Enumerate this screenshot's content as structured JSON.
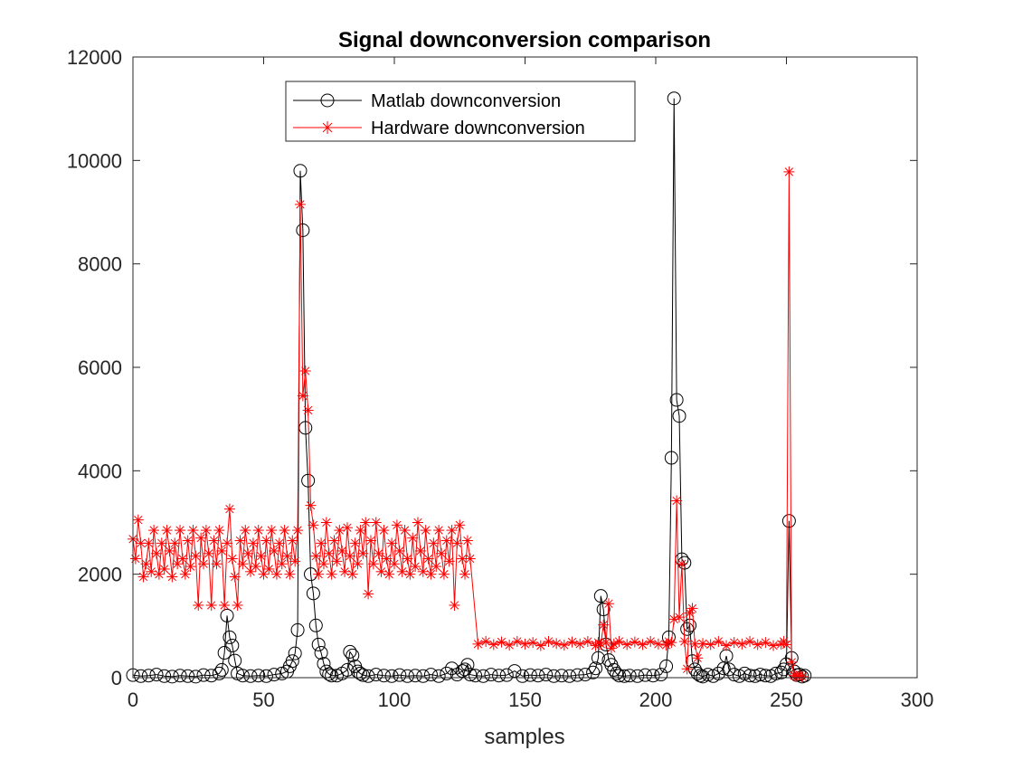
{
  "chart_data": {
    "type": "line",
    "title": "Signal downconversion comparison",
    "xlabel": "samples",
    "ylabel": "",
    "xlim": [
      0,
      300
    ],
    "ylim": [
      0,
      12000
    ],
    "xticks": [
      0,
      50,
      100,
      150,
      200,
      250,
      300
    ],
    "yticks": [
      0,
      2000,
      4000,
      6000,
      8000,
      10000,
      12000
    ],
    "grid": false,
    "legend_position": "top-center",
    "series": [
      {
        "name": "Matlab downconversion",
        "color": "#000000",
        "marker": "circle",
        "x": [
          0,
          3,
          6,
          9,
          12,
          15,
          18,
          21,
          24,
          27,
          30,
          33,
          34,
          35,
          36,
          37,
          38,
          39,
          40,
          42,
          45,
          48,
          51,
          54,
          57,
          59,
          60,
          61,
          62,
          63,
          64,
          65,
          66,
          67,
          68,
          69,
          70,
          71,
          72,
          73,
          74,
          75,
          76,
          78,
          80,
          82,
          83,
          84,
          85,
          86,
          87,
          88,
          90,
          93,
          96,
          99,
          102,
          105,
          108,
          111,
          114,
          117,
          120,
          122,
          124,
          126,
          127,
          128,
          129,
          131,
          134,
          137,
          140,
          143,
          146,
          149,
          152,
          155,
          158,
          161,
          164,
          167,
          170,
          173,
          176,
          177,
          178,
          179,
          180,
          181,
          182,
          183,
          184,
          185,
          186,
          188,
          190,
          193,
          196,
          199,
          202,
          204,
          205,
          206,
          207,
          208,
          209,
          210,
          211,
          212,
          213,
          214,
          215,
          216,
          217,
          218,
          220,
          222,
          224,
          226,
          227,
          228,
          230,
          232,
          234,
          236,
          238,
          240,
          242,
          244,
          246,
          248,
          249,
          250,
          251,
          252,
          253,
          254,
          255,
          256,
          257
        ],
        "y": [
          50,
          30,
          40,
          60,
          30,
          20,
          40,
          30,
          20,
          50,
          40,
          80,
          150,
          480,
          1200,
          780,
          620,
          330,
          80,
          40,
          30,
          40,
          30,
          60,
          80,
          120,
          220,
          320,
          470,
          920,
          9800,
          8650,
          4830,
          3810,
          2000,
          1630,
          1010,
          640,
          480,
          270,
          120,
          70,
          40,
          40,
          80,
          150,
          500,
          430,
          220,
          120,
          80,
          50,
          30,
          60,
          40,
          30,
          50,
          30,
          40,
          30,
          60,
          30,
          80,
          180,
          60,
          130,
          160,
          250,
          60,
          40,
          30,
          60,
          40,
          50,
          130,
          30,
          50,
          40,
          60,
          30,
          40,
          30,
          50,
          60,
          100,
          180,
          380,
          1580,
          1320,
          640,
          340,
          250,
          150,
          80,
          40,
          30,
          40,
          30,
          50,
          40,
          60,
          220,
          780,
          4250,
          11200,
          5370,
          5060,
          2290,
          2220,
          940,
          1010,
          320,
          160,
          80,
          40,
          20,
          60,
          30,
          80,
          180,
          420,
          160,
          60,
          30,
          80,
          40,
          30,
          60,
          40,
          30,
          80,
          100,
          160,
          260,
          3030,
          380,
          120,
          50,
          60,
          20,
          40
        ]
      },
      {
        "name": "Hardware downconversion",
        "color": "#ff0000",
        "marker": "star",
        "x": [
          0,
          1,
          2,
          3,
          4,
          5,
          6,
          7,
          8,
          9,
          10,
          11,
          12,
          13,
          14,
          15,
          16,
          17,
          18,
          19,
          20,
          21,
          22,
          23,
          24,
          25,
          26,
          27,
          28,
          29,
          30,
          31,
          32,
          33,
          34,
          35,
          36,
          37,
          38,
          39,
          40,
          41,
          42,
          43,
          44,
          45,
          46,
          47,
          48,
          49,
          50,
          51,
          52,
          53,
          54,
          55,
          56,
          57,
          58,
          59,
          60,
          61,
          62,
          63,
          64,
          65,
          66,
          67,
          68,
          69,
          70,
          71,
          72,
          73,
          74,
          75,
          76,
          77,
          78,
          79,
          80,
          81,
          82,
          83,
          84,
          85,
          86,
          87,
          88,
          89,
          90,
          91,
          92,
          93,
          94,
          95,
          96,
          97,
          98,
          99,
          100,
          101,
          102,
          103,
          104,
          105,
          106,
          107,
          108,
          109,
          110,
          111,
          112,
          113,
          114,
          115,
          116,
          117,
          118,
          119,
          120,
          121,
          122,
          123,
          124,
          125,
          126,
          127,
          128,
          129,
          132,
          135,
          138,
          141,
          144,
          147,
          150,
          153,
          156,
          159,
          162,
          165,
          168,
          171,
          174,
          177,
          178,
          179,
          180,
          181,
          182,
          183,
          184,
          186,
          189,
          192,
          195,
          198,
          201,
          204,
          205,
          206,
          207,
          208,
          209,
          210,
          211,
          212,
          213,
          214,
          215,
          216,
          218,
          221,
          224,
          227,
          230,
          233,
          236,
          239,
          242,
          245,
          248,
          249,
          250,
          251,
          252,
          253,
          254,
          255,
          256
        ],
        "y": [
          2680,
          2300,
          3050,
          2600,
          1950,
          2200,
          2600,
          2050,
          2850,
          2400,
          2000,
          2600,
          2100,
          2850,
          2450,
          1950,
          2600,
          2200,
          2850,
          2300,
          2000,
          2650,
          2150,
          2850,
          2350,
          1400,
          2700,
          2200,
          2850,
          2400,
          1400,
          2650,
          2200,
          2850,
          2450,
          1400,
          2600,
          3260,
          2300,
          1950,
          1400,
          2650,
          2200,
          2850,
          2400,
          2050,
          2600,
          2150,
          2850,
          2350,
          2000,
          2650,
          2100,
          2850,
          2450,
          2000,
          2600,
          2200,
          2850,
          2350,
          2000,
          2650,
          2250,
          2850,
          9150,
          5450,
          5930,
          5170,
          3330,
          2950,
          2350,
          2000,
          2600,
          2200,
          3000,
          2400,
          2000,
          2650,
          2250,
          2850,
          2450,
          2050,
          2900,
          2350,
          2000,
          2600,
          2200,
          2850,
          2400,
          3000,
          1620,
          2650,
          2200,
          3000,
          2400,
          2050,
          2850,
          2300,
          2000,
          2600,
          2200,
          2950,
          2450,
          2050,
          2850,
          2300,
          2000,
          2700,
          2150,
          3000,
          2450,
          2050,
          2850,
          2300,
          2000,
          2600,
          2150,
          2850,
          2400,
          2000,
          2650,
          2250,
          2850,
          1400,
          2600,
          2950,
          2300,
          2000,
          2650,
          2300,
          650,
          700,
          640,
          690,
          630,
          700,
          650,
          680,
          620,
          700,
          660,
          630,
          690,
          650,
          700,
          620,
          680,
          650,
          1020,
          680,
          1430,
          570,
          650,
          700,
          640,
          690,
          640,
          700,
          650,
          630,
          700,
          680,
          1130,
          3420,
          1170,
          2200,
          700,
          170,
          1250,
          1340,
          650,
          380,
          660,
          640,
          700,
          620,
          680,
          650,
          700,
          640,
          680,
          620,
          650,
          700,
          640,
          9780,
          300,
          40,
          30,
          50,
          20
        ]
      }
    ]
  }
}
